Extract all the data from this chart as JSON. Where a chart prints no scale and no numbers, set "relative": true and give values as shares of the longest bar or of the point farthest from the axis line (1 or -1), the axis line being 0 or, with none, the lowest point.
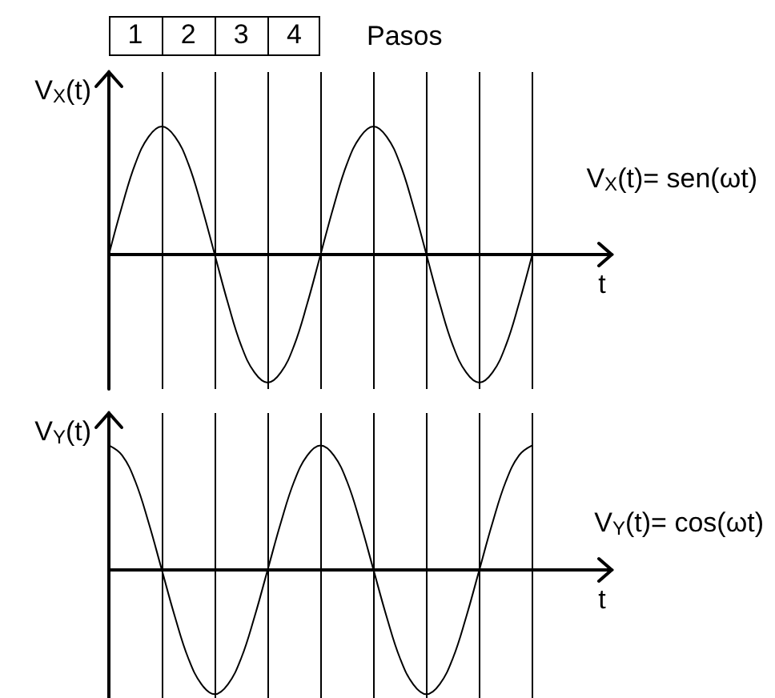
{
  "chart_data": [
    {
      "type": "line",
      "ylabel": "V$_{X}$(t)",
      "xlabel": "t",
      "x2label": "Pasos",
      "relative": true,
      "categories": [
        null,
        null,
        null,
        null,
        null,
        null,
        null,
        null,
        null,
        null,
        null,
        null,
        null,
        null,
        null,
        null,
        null,
        null,
        null,
        null,
        null,
        null,
        null,
        null,
        null,
        null,
        null,
        null,
        null,
        null,
        null,
        null,
        null,
        null,
        null,
        null,
        null,
        null,
        null
      ],
      "values": [
        0,
        0.38,
        0.71,
        0.92,
        1,
        0.92,
        0.71,
        0.38,
        0,
        -0.38,
        -0.71,
        -0.92,
        -1,
        -0.92,
        -0.71,
        -0.38,
        0,
        0.38,
        0.71,
        0.92,
        1,
        0.92,
        0.71,
        0.38,
        0,
        -0.38,
        -0.71,
        -0.92,
        -1,
        -0.92,
        -0.71,
        -0.38,
        0,
        null,
        null,
        null,
        null,
        null,
        null
      ],
      "color": "#000000",
      "x2lim": [
        0.5,
        10
      ],
      "x2ticks": [
        1,
        2,
        3,
        4
      ],
      "ref_lines": [
        {
          "axis": "x2",
          "value": 1.5,
          "color": "#000000"
        },
        {
          "axis": "x2",
          "value": 2.5,
          "color": "#000000"
        },
        {
          "axis": "x2",
          "value": 3.5,
          "color": "#000000"
        },
        {
          "axis": "x2",
          "value": 4.5,
          "color": "#000000"
        },
        {
          "axis": "x2",
          "value": 5.5,
          "color": "#000000"
        },
        {
          "axis": "x2",
          "value": 6.5,
          "color": "#000000"
        },
        {
          "axis": "x2",
          "value": 7.5,
          "color": "#000000"
        },
        {
          "axis": "x2",
          "value": 8.5,
          "color": "#000000"
        }
      ],
      "annotations": [
        "V$_{X}$(t)= sen(ωt)"
      ]
    },
    {
      "type": "line",
      "ylabel": "V$_{Y}$(t)",
      "xlabel": "t",
      "relative": true,
      "grid": "x",
      "categories": [
        null,
        null,
        null,
        null,
        null,
        null,
        null,
        null,
        null,
        null,
        null,
        null,
        null,
        null,
        null,
        null,
        null,
        null,
        null,
        null,
        null,
        null,
        null,
        null,
        null,
        null,
        null,
        null,
        null,
        null,
        null,
        null,
        null,
        null,
        null,
        null,
        null,
        null,
        null
      ],
      "values": [
        1,
        0.92,
        0.71,
        0.38,
        0,
        -0.38,
        -0.71,
        -0.92,
        -1,
        -0.92,
        -0.71,
        -0.38,
        0,
        0.38,
        0.71,
        0.92,
        1,
        0.92,
        0.71,
        0.38,
        0,
        -0.38,
        -0.71,
        -0.92,
        -1,
        -0.92,
        -0.71,
        -0.38,
        0,
        0.38,
        0.71,
        0.92,
        1,
        null,
        null,
        null,
        null,
        null,
        null
      ],
      "color": "#000000",
      "annotations": [
        "V$_{Y}$(t)= cos(ωt)"
      ]
    }
  ]
}
